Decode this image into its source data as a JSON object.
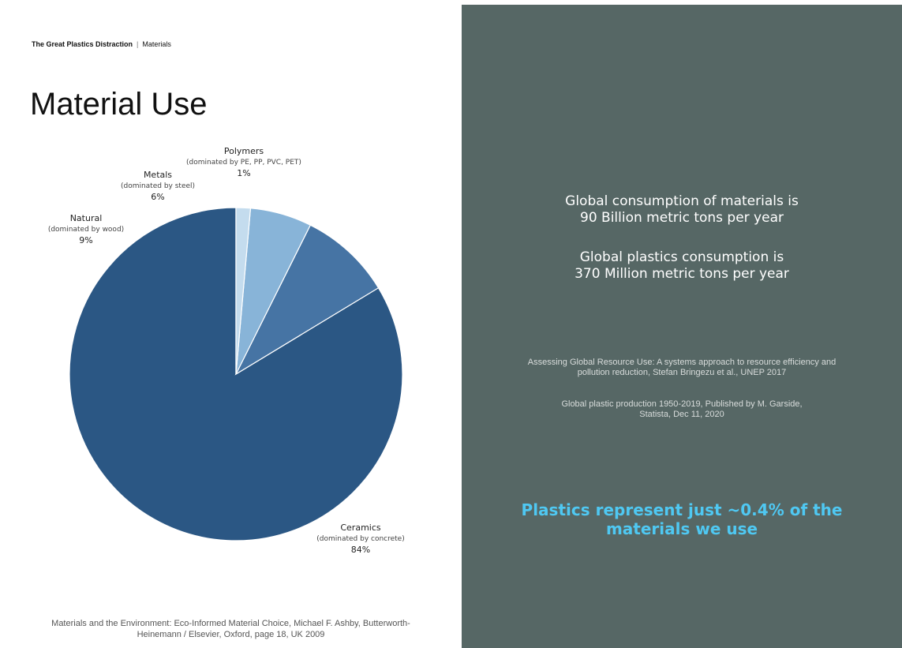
{
  "header": {
    "section": "The Great Plastics Distraction",
    "separator": "|",
    "subsection": "Materials"
  },
  "title": "Material Use",
  "chart_data": {
    "type": "pie",
    "start_angle_deg": 0,
    "direction": "counterclockwise",
    "slices": [
      {
        "name": "Ceramics",
        "note": "(dominated by concrete)",
        "label": "84%",
        "value": 84,
        "color": "#2b5784"
      },
      {
        "name": "Natural",
        "note": "(dominated by wood)",
        "label": "9%",
        "value": 9,
        "color": "#4674a4"
      },
      {
        "name": "Metals",
        "note": "(dominated by steel)",
        "label": "6%",
        "value": 6,
        "color": "#88b4d8"
      },
      {
        "name": "Polymers",
        "note": "(dominated by PE, PP, PVC, PET)",
        "label": "1%",
        "value": 1.4,
        "color": "#c4dcee"
      }
    ]
  },
  "left_source": {
    "line1": "Materials and the Environment: Eco-Informed Material Choice, Michael F. Ashby, Butterworth-",
    "line2": "Heinemann / Elsevier, Oxford, page 18, UK 2009"
  },
  "stats": [
    {
      "line1": "Global consumption of materials is",
      "line2": "90 Billion metric tons per year"
    },
    {
      "line1": "Global plastics consumption is",
      "line2": "370 Million metric tons per year"
    }
  ],
  "references": [
    {
      "line1": "Assessing Global Resource Use: A systems approach to resource efficiency and",
      "line2": "pollution reduction, Stefan Bringezu et al., UNEP 2017"
    },
    {
      "line1": "Global plastic production 1950-2019, Published by M. Garside,",
      "line2": "Statista, Dec 11, 2020"
    }
  ],
  "highlight": {
    "line1": "Plastics represent just ~0.4% of the",
    "line2": "materials we use"
  },
  "colors": {
    "panel": "#566765",
    "accent": "#4fc8f2"
  }
}
